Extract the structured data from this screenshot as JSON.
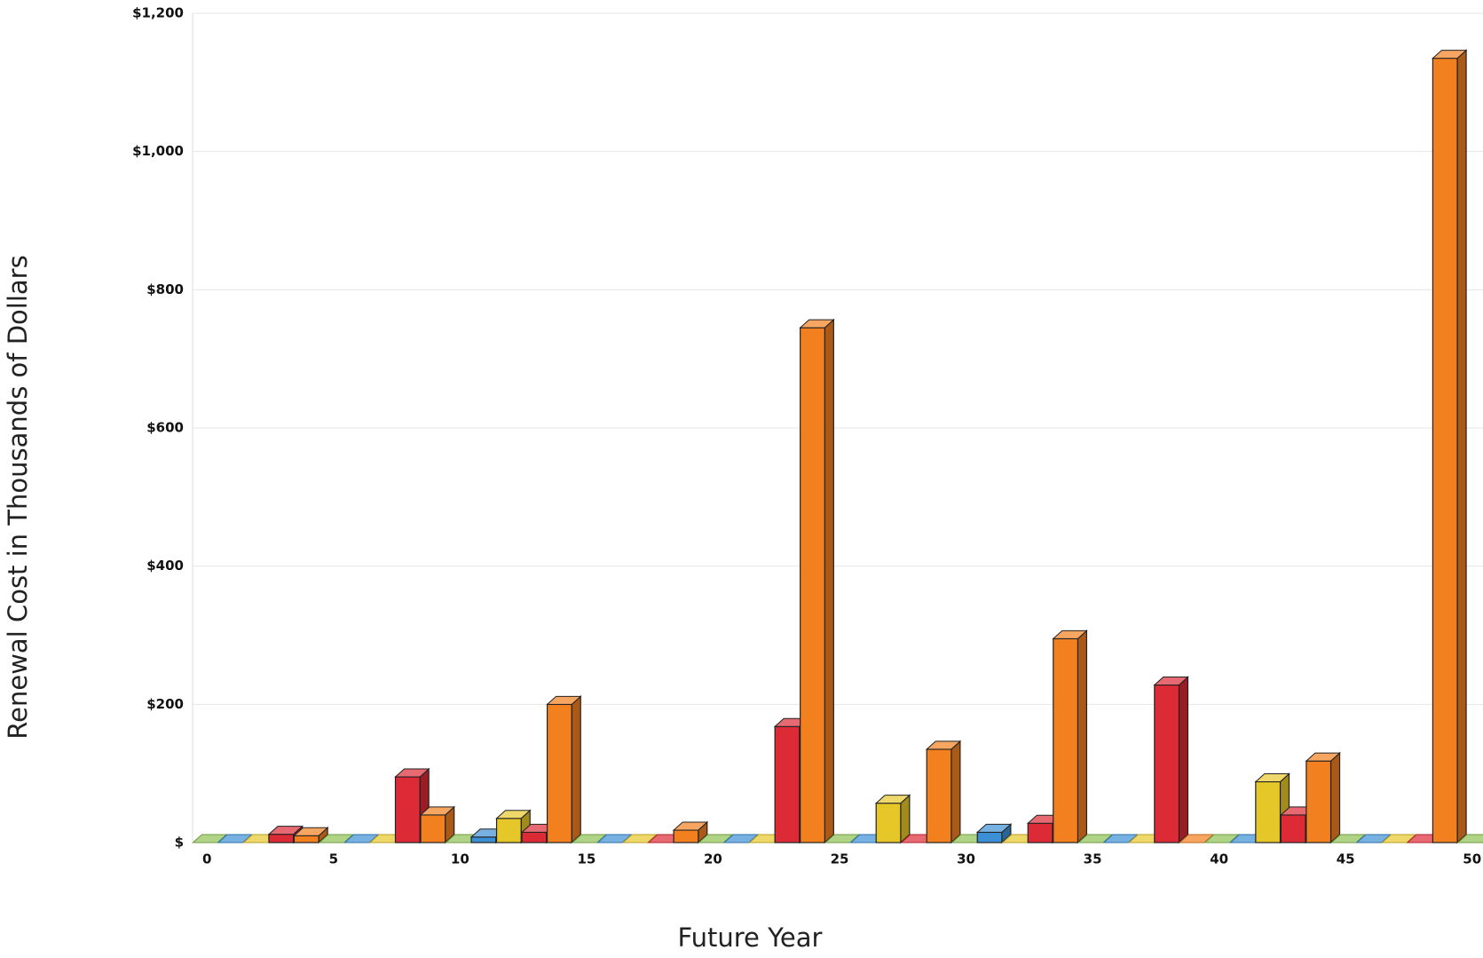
{
  "chart_data": {
    "type": "bar3d",
    "x_label": "Future Year",
    "y_label": "Renewal Cost in Thousands of Dollars",
    "x": [
      0,
      1,
      2,
      3,
      4,
      5,
      6,
      7,
      8,
      9,
      10,
      11,
      12,
      13,
      14,
      15,
      16,
      17,
      18,
      19,
      20,
      21,
      22,
      23,
      24,
      25,
      26,
      27,
      28,
      29,
      30,
      31,
      32,
      33,
      34,
      35,
      36,
      37,
      38,
      39,
      40,
      41,
      42,
      43,
      44,
      45,
      46,
      47,
      48,
      49,
      50
    ],
    "values": [
      0,
      0,
      0,
      12,
      10,
      0,
      0,
      0,
      95,
      40,
      0,
      8,
      35,
      15,
      200,
      0,
      0,
      0,
      0,
      18,
      0,
      0,
      0,
      168,
      745,
      0,
      0,
      57,
      0,
      135,
      0,
      15,
      0,
      28,
      295,
      0,
      0,
      0,
      228,
      0,
      0,
      0,
      88,
      40,
      118,
      0,
      0,
      0,
      0,
      1135,
      0
    ],
    "colors": [
      "#8cc152",
      "#3b8fd4",
      "#e6c72a",
      "#dc2a36",
      "#f3801f"
    ],
    "xlim": [
      -0.5,
      50.5
    ],
    "xticks": [
      0,
      5,
      10,
      15,
      20,
      25,
      30,
      35,
      40,
      45,
      50
    ],
    "ylim": [
      0,
      1200
    ],
    "yticks": [
      {
        "value": 0,
        "label": "$"
      },
      {
        "value": 200,
        "label": "$200"
      },
      {
        "value": 400,
        "label": "$400"
      },
      {
        "value": 600,
        "label": "$600"
      },
      {
        "value": 800,
        "label": "$800"
      },
      {
        "value": 1000,
        "label": "$1,000"
      },
      {
        "value": 1200,
        "label": "$1,200"
      }
    ],
    "grid": true
  }
}
